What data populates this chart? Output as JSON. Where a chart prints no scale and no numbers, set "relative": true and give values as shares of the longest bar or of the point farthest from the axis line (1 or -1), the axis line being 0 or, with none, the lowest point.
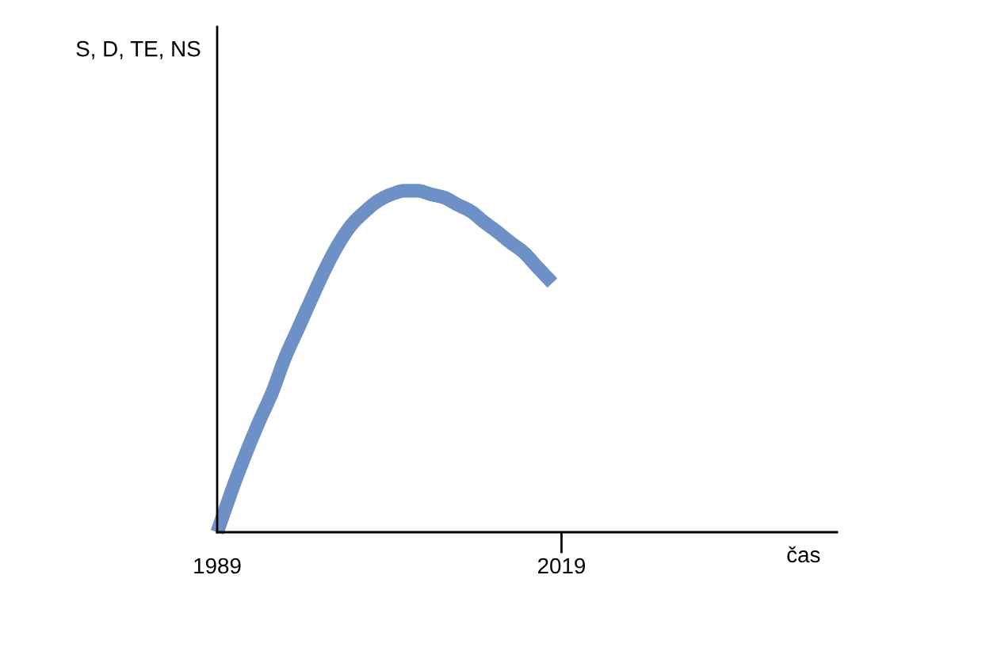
{
  "chart_data": {
    "type": "line",
    "xlabel": "čas",
    "annotations": [
      "S, D, TE, NS"
    ],
    "relative": true,
    "xlim": [
      1989,
      2043
    ],
    "xticks": [
      1989,
      2019
    ],
    "marker": "none",
    "line_style": "solid",
    "series": [
      {
        "color": "#6d91c6",
        "x": [
          1989,
          1990.8,
          1992.6,
          1993.8,
          1994.9,
          1996.1,
          1997.3,
          1998.4,
          1999.5,
          2000.7,
          2001.9,
          2003.0,
          2004.2,
          2005.3,
          2006.5,
          2007.6,
          2008.8,
          2009.9,
          2011.1,
          2012.2,
          2013.4,
          2014.5,
          2015.7,
          2016.8,
          2018.2
        ],
        "values": [
          0,
          0.17,
          0.32,
          0.41,
          0.51,
          0.6,
          0.69,
          0.77,
          0.84,
          0.9,
          0.94,
          0.97,
          0.99,
          1.0,
          1.0,
          0.99,
          0.98,
          0.96,
          0.94,
          0.91,
          0.88,
          0.85,
          0.82,
          0.78,
          0.73
        ]
      }
    ]
  }
}
